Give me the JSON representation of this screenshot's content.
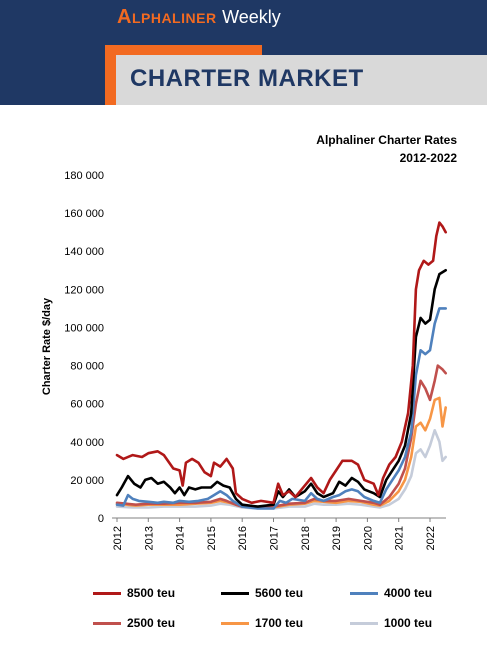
{
  "header": {
    "brand_strong": "Alphaliner",
    "brand_weak": "Weekly",
    "section_title": "CHARTER MARKET"
  },
  "chart_data": {
    "type": "line",
    "title": "Alphaliner Charter Rates",
    "subtitle": "2012-2022",
    "xlabel": "",
    "ylabel": "Charter Rate $/day",
    "xlim": [
      2012,
      2022.5
    ],
    "ylim": [
      0,
      180000
    ],
    "yticks": [
      0,
      20000,
      40000,
      60000,
      80000,
      100000,
      120000,
      140000,
      160000,
      180000
    ],
    "ytick_labels": [
      "0",
      "20 000",
      "40 000",
      "60 000",
      "80 000",
      "100 000",
      "120 000",
      "140 000",
      "160 000",
      "180 000"
    ],
    "xticks": [
      2012,
      2013,
      2014,
      2015,
      2016,
      2017,
      2018,
      2019,
      2020,
      2021,
      2022
    ],
    "xtick_labels": [
      "2012",
      "2013",
      "2014",
      "2015",
      "2016",
      "2017",
      "2018",
      "2019",
      "2020",
      "2021",
      "2022"
    ],
    "grid": false,
    "legend_position": "bottom",
    "series": [
      {
        "name": "8500 teu",
        "color": "#b01818",
        "points": [
          [
            2012.0,
            33000
          ],
          [
            2012.2,
            31000
          ],
          [
            2012.5,
            33000
          ],
          [
            2012.8,
            32000
          ],
          [
            2013.0,
            34000
          ],
          [
            2013.3,
            35000
          ],
          [
            2013.5,
            33000
          ],
          [
            2013.8,
            26000
          ],
          [
            2014.0,
            25000
          ],
          [
            2014.1,
            17000
          ],
          [
            2014.2,
            29000
          ],
          [
            2014.4,
            31000
          ],
          [
            2014.6,
            29000
          ],
          [
            2014.8,
            24000
          ],
          [
            2015.0,
            22000
          ],
          [
            2015.1,
            29000
          ],
          [
            2015.3,
            27000
          ],
          [
            2015.5,
            31000
          ],
          [
            2015.7,
            26000
          ],
          [
            2015.8,
            13000
          ],
          [
            2016.0,
            10000
          ],
          [
            2016.3,
            8000
          ],
          [
            2016.6,
            9000
          ],
          [
            2017.0,
            8000
          ],
          [
            2017.15,
            18000
          ],
          [
            2017.3,
            12000
          ],
          [
            2017.5,
            14000
          ],
          [
            2017.7,
            11000
          ],
          [
            2018.0,
            17000
          ],
          [
            2018.2,
            21000
          ],
          [
            2018.4,
            16000
          ],
          [
            2018.6,
            13000
          ],
          [
            2018.8,
            20000
          ],
          [
            2019.0,
            25000
          ],
          [
            2019.2,
            30000
          ],
          [
            2019.5,
            30000
          ],
          [
            2019.7,
            28000
          ],
          [
            2019.9,
            20000
          ],
          [
            2020.2,
            18000
          ],
          [
            2020.35,
            12000
          ],
          [
            2020.5,
            21000
          ],
          [
            2020.7,
            28000
          ],
          [
            2020.9,
            32000
          ],
          [
            2021.1,
            40000
          ],
          [
            2021.3,
            55000
          ],
          [
            2021.45,
            80000
          ],
          [
            2021.55,
            120000
          ],
          [
            2021.65,
            130000
          ],
          [
            2021.8,
            135000
          ],
          [
            2021.95,
            133000
          ],
          [
            2022.1,
            135000
          ],
          [
            2022.2,
            148000
          ],
          [
            2022.3,
            155000
          ],
          [
            2022.4,
            153000
          ],
          [
            2022.5,
            150000
          ]
        ]
      },
      {
        "name": "5600 teu",
        "color": "#000000",
        "points": [
          [
            2012.0,
            12000
          ],
          [
            2012.15,
            16000
          ],
          [
            2012.35,
            22000
          ],
          [
            2012.55,
            18000
          ],
          [
            2012.75,
            16000
          ],
          [
            2012.9,
            20000
          ],
          [
            2013.1,
            21000
          ],
          [
            2013.3,
            18000
          ],
          [
            2013.5,
            19000
          ],
          [
            2013.7,
            16000
          ],
          [
            2013.85,
            13000
          ],
          [
            2014.0,
            16000
          ],
          [
            2014.15,
            12000
          ],
          [
            2014.3,
            16000
          ],
          [
            2014.5,
            15000
          ],
          [
            2014.7,
            16000
          ],
          [
            2015.0,
            16000
          ],
          [
            2015.2,
            19000
          ],
          [
            2015.4,
            17000
          ],
          [
            2015.6,
            16000
          ],
          [
            2015.8,
            10000
          ],
          [
            2016.0,
            7000
          ],
          [
            2016.5,
            6000
          ],
          [
            2017.0,
            7000
          ],
          [
            2017.15,
            14000
          ],
          [
            2017.3,
            11000
          ],
          [
            2017.5,
            15000
          ],
          [
            2017.7,
            11000
          ],
          [
            2018.0,
            14000
          ],
          [
            2018.2,
            18000
          ],
          [
            2018.4,
            13000
          ],
          [
            2018.6,
            11000
          ],
          [
            2018.9,
            13000
          ],
          [
            2019.1,
            19000
          ],
          [
            2019.3,
            17000
          ],
          [
            2019.5,
            21000
          ],
          [
            2019.7,
            19000
          ],
          [
            2019.9,
            15000
          ],
          [
            2020.2,
            13000
          ],
          [
            2020.4,
            11000
          ],
          [
            2020.6,
            20000
          ],
          [
            2020.8,
            25000
          ],
          [
            2021.0,
            30000
          ],
          [
            2021.2,
            38000
          ],
          [
            2021.4,
            55000
          ],
          [
            2021.55,
            95000
          ],
          [
            2021.7,
            105000
          ],
          [
            2021.85,
            102000
          ],
          [
            2022.0,
            104000
          ],
          [
            2022.15,
            120000
          ],
          [
            2022.3,
            128000
          ],
          [
            2022.5,
            130000
          ]
        ]
      },
      {
        "name": "4000 teu",
        "color": "#4f81bd",
        "points": [
          [
            2012.0,
            7000
          ],
          [
            2012.2,
            6500
          ],
          [
            2012.35,
            12000
          ],
          [
            2012.5,
            10000
          ],
          [
            2012.7,
            9000
          ],
          [
            2013.0,
            8500
          ],
          [
            2013.3,
            8000
          ],
          [
            2013.5,
            8500
          ],
          [
            2013.8,
            8000
          ],
          [
            2014.0,
            9000
          ],
          [
            2014.3,
            8500
          ],
          [
            2014.6,
            9000
          ],
          [
            2014.9,
            10000
          ],
          [
            2015.1,
            12000
          ],
          [
            2015.3,
            14000
          ],
          [
            2015.5,
            12000
          ],
          [
            2015.7,
            9000
          ],
          [
            2016.0,
            6000
          ],
          [
            2016.5,
            5000
          ],
          [
            2017.0,
            5000
          ],
          [
            2017.2,
            9000
          ],
          [
            2017.4,
            8000
          ],
          [
            2017.6,
            10000
          ],
          [
            2018.0,
            9000
          ],
          [
            2018.2,
            13000
          ],
          [
            2018.4,
            10000
          ],
          [
            2018.6,
            9000
          ],
          [
            2018.9,
            11000
          ],
          [
            2019.1,
            12000
          ],
          [
            2019.3,
            14000
          ],
          [
            2019.5,
            15000
          ],
          [
            2019.7,
            14000
          ],
          [
            2019.9,
            11000
          ],
          [
            2020.2,
            9000
          ],
          [
            2020.4,
            8000
          ],
          [
            2020.6,
            15000
          ],
          [
            2020.8,
            20000
          ],
          [
            2021.0,
            25000
          ],
          [
            2021.2,
            32000
          ],
          [
            2021.4,
            45000
          ],
          [
            2021.55,
            75000
          ],
          [
            2021.7,
            88000
          ],
          [
            2021.85,
            86000
          ],
          [
            2022.0,
            88000
          ],
          [
            2022.15,
            102000
          ],
          [
            2022.3,
            110000
          ],
          [
            2022.5,
            110000
          ]
        ]
      },
      {
        "name": "2500 teu",
        "color": "#c0504d",
        "points": [
          [
            2012.0,
            8000
          ],
          [
            2012.3,
            7500
          ],
          [
            2012.6,
            7000
          ],
          [
            2013.0,
            7500
          ],
          [
            2013.5,
            7500
          ],
          [
            2014.0,
            8000
          ],
          [
            2014.5,
            8000
          ],
          [
            2015.0,
            8500
          ],
          [
            2015.3,
            10000
          ],
          [
            2015.5,
            9000
          ],
          [
            2015.8,
            7000
          ],
          [
            2016.0,
            6000
          ],
          [
            2016.5,
            5500
          ],
          [
            2017.0,
            6000
          ],
          [
            2017.5,
            7500
          ],
          [
            2018.0,
            8000
          ],
          [
            2018.3,
            10000
          ],
          [
            2018.6,
            9000
          ],
          [
            2019.0,
            9000
          ],
          [
            2019.4,
            10000
          ],
          [
            2019.8,
            9000
          ],
          [
            2020.2,
            8000
          ],
          [
            2020.4,
            7000
          ],
          [
            2020.7,
            11000
          ],
          [
            2021.0,
            18000
          ],
          [
            2021.2,
            26000
          ],
          [
            2021.4,
            42000
          ],
          [
            2021.55,
            60000
          ],
          [
            2021.7,
            72000
          ],
          [
            2021.85,
            68000
          ],
          [
            2022.0,
            62000
          ],
          [
            2022.15,
            72000
          ],
          [
            2022.25,
            80000
          ],
          [
            2022.4,
            78000
          ],
          [
            2022.5,
            76000
          ]
        ]
      },
      {
        "name": "1700 teu",
        "color": "#f79646",
        "points": [
          [
            2012.0,
            7500
          ],
          [
            2012.3,
            7000
          ],
          [
            2012.6,
            6500
          ],
          [
            2013.0,
            7000
          ],
          [
            2013.5,
            7000
          ],
          [
            2014.0,
            7000
          ],
          [
            2014.5,
            7500
          ],
          [
            2015.0,
            8000
          ],
          [
            2015.3,
            9000
          ],
          [
            2015.6,
            8000
          ],
          [
            2016.0,
            6000
          ],
          [
            2016.5,
            5500
          ],
          [
            2017.0,
            5500
          ],
          [
            2017.5,
            7000
          ],
          [
            2018.0,
            7500
          ],
          [
            2018.3,
            9000
          ],
          [
            2018.6,
            8500
          ],
          [
            2019.0,
            8000
          ],
          [
            2019.4,
            9000
          ],
          [
            2019.8,
            8500
          ],
          [
            2020.2,
            7000
          ],
          [
            2020.4,
            6500
          ],
          [
            2020.7,
            9000
          ],
          [
            2021.0,
            14000
          ],
          [
            2021.2,
            20000
          ],
          [
            2021.4,
            32000
          ],
          [
            2021.55,
            48000
          ],
          [
            2021.7,
            50000
          ],
          [
            2021.85,
            46000
          ],
          [
            2022.0,
            52000
          ],
          [
            2022.15,
            62000
          ],
          [
            2022.3,
            63000
          ],
          [
            2022.4,
            48000
          ],
          [
            2022.5,
            58000
          ]
        ]
      },
      {
        "name": "1000 teu",
        "color": "#c5ccda",
        "points": [
          [
            2012.0,
            6000
          ],
          [
            2012.5,
            5500
          ],
          [
            2013.0,
            5500
          ],
          [
            2013.5,
            6000
          ],
          [
            2014.0,
            6000
          ],
          [
            2014.5,
            6000
          ],
          [
            2015.0,
            6500
          ],
          [
            2015.3,
            7500
          ],
          [
            2015.6,
            7000
          ],
          [
            2016.0,
            5500
          ],
          [
            2016.5,
            5000
          ],
          [
            2017.0,
            5000
          ],
          [
            2017.5,
            6000
          ],
          [
            2018.0,
            6000
          ],
          [
            2018.3,
            7500
          ],
          [
            2018.6,
            7000
          ],
          [
            2019.0,
            7000
          ],
          [
            2019.4,
            7500
          ],
          [
            2019.8,
            7000
          ],
          [
            2020.2,
            6000
          ],
          [
            2020.4,
            5500
          ],
          [
            2020.7,
            7000
          ],
          [
            2021.0,
            10000
          ],
          [
            2021.2,
            15000
          ],
          [
            2021.4,
            22000
          ],
          [
            2021.55,
            34000
          ],
          [
            2021.7,
            36000
          ],
          [
            2021.85,
            32000
          ],
          [
            2022.0,
            38000
          ],
          [
            2022.15,
            46000
          ],
          [
            2022.3,
            40000
          ],
          [
            2022.4,
            30000
          ],
          [
            2022.5,
            32000
          ]
        ]
      }
    ]
  }
}
